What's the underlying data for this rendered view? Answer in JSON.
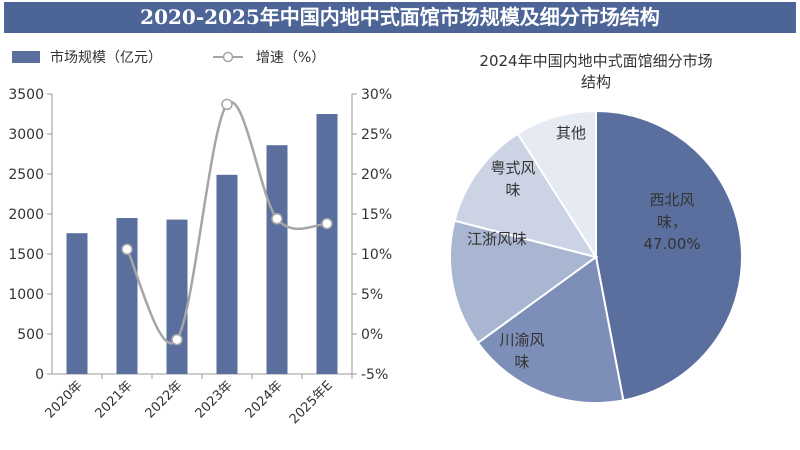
{
  "banner_title": "2020-2025年中国内地中式面馆市场规模及细分市场结构",
  "chart_data": [
    {
      "type": "bar+line",
      "categories": [
        "2020年",
        "2021年",
        "2022年",
        "2023年",
        "2024年",
        "2025年E"
      ],
      "series": [
        {
          "name": "市场规模（亿元）",
          "type": "bar",
          "axis": "left",
          "color": "#5a6f9e",
          "values": [
            1760,
            1950,
            1930,
            2490,
            2860,
            3250
          ]
        },
        {
          "name": "增速（%）",
          "type": "line",
          "axis": "right",
          "color": "#a6a6a6",
          "values": [
            null,
            10.6,
            -0.7,
            28.7,
            14.4,
            13.8
          ]
        }
      ],
      "y_left": {
        "min": 0,
        "max": 3500,
        "ticks": [
          "0",
          "500",
          "1000",
          "1500",
          "2000",
          "2500",
          "3000",
          "3500"
        ]
      },
      "y_right": {
        "min": -5,
        "max": 30,
        "ticks": [
          "-5%",
          "0%",
          "5%",
          "10%",
          "15%",
          "20%",
          "25%",
          "30%"
        ]
      },
      "legend_position": "top-left",
      "grid": false
    },
    {
      "type": "pie",
      "title": "2024年中国内地中式面馆细分市场结构",
      "slices": [
        {
          "label": "西北风味",
          "value": 47.0,
          "display": "47.00%",
          "color": "#5a6f9e"
        },
        {
          "label": "川渝风味",
          "value": 18.0,
          "color": "#7d8fb8"
        },
        {
          "label": "江浙风味",
          "value": 14.0,
          "color": "#a9b6d1"
        },
        {
          "label": "粤式风味",
          "value": 12.0,
          "color": "#cbd3e4"
        },
        {
          "label": "其他",
          "value": 9.0,
          "color": "#e6eaf2"
        }
      ]
    }
  ]
}
